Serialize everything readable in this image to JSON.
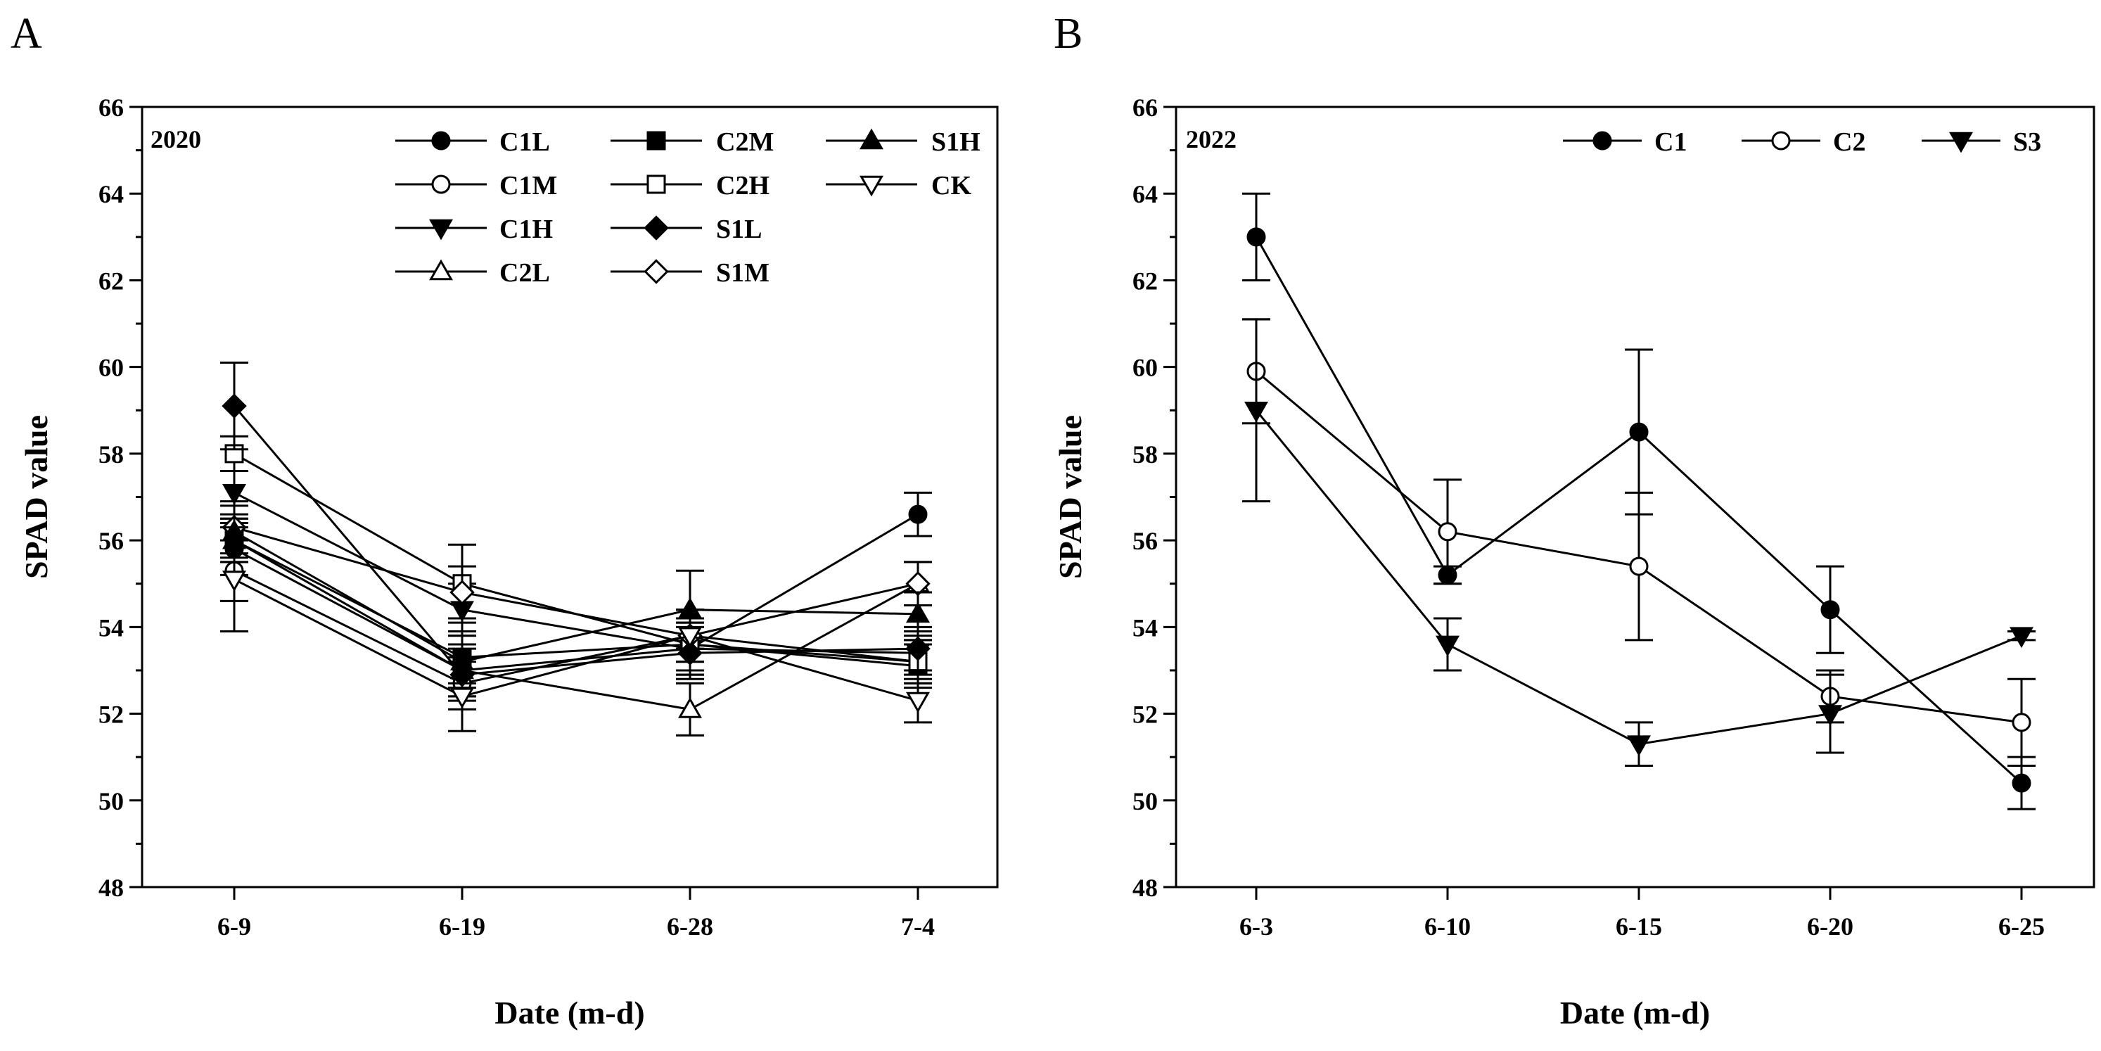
{
  "chart_data": [
    {
      "panel": "A",
      "type": "line",
      "year_label": "2020",
      "xlabel": "Date (m-d)",
      "ylabel": "SPAD value",
      "categories": [
        "6-9",
        "6-19",
        "6-28",
        "7-4"
      ],
      "ylim": [
        48,
        66
      ],
      "yticks": [
        48,
        50,
        52,
        54,
        56,
        58,
        60,
        62,
        64,
        66
      ],
      "grid": false,
      "legend_position": "top-right",
      "series": [
        {
          "name": "C1L",
          "marker": "circle",
          "fill": "filled",
          "values": [
            55.8,
            53.0,
            53.5,
            56.6
          ],
          "errors": [
            0.6,
            0.6,
            0.6,
            0.5
          ]
        },
        {
          "name": "C1M",
          "marker": "circle",
          "fill": "open",
          "values": [
            55.3,
            52.7,
            53.8,
            53.2
          ],
          "errors": [
            0.7,
            0.6,
            0.6,
            0.5
          ]
        },
        {
          "name": "C1H",
          "marker": "triangle-down",
          "fill": "filled",
          "values": [
            57.1,
            54.4,
            53.5,
            53.4
          ],
          "errors": [
            0.5,
            0.6,
            0.6,
            0.5
          ]
        },
        {
          "name": "C2L",
          "marker": "triangle-up",
          "fill": "open",
          "values": [
            56.0,
            53.0,
            52.1,
            55.0
          ],
          "errors": [
            0.5,
            0.6,
            0.6,
            0.5
          ]
        },
        {
          "name": "C2M",
          "marker": "square",
          "fill": "filled",
          "values": [
            56.0,
            53.3,
            53.6,
            53.1
          ],
          "errors": [
            0.5,
            0.6,
            0.6,
            0.5
          ]
        },
        {
          "name": "C2H",
          "marker": "square",
          "fill": "open",
          "values": [
            58.0,
            55.0,
            53.6,
            53.2
          ],
          "errors": [
            0.4,
            0.9,
            0.6,
            0.5
          ]
        },
        {
          "name": "S1L",
          "marker": "diamond",
          "fill": "filled",
          "values": [
            59.1,
            52.9,
            53.4,
            53.5
          ],
          "errors": [
            1.0,
            0.6,
            0.6,
            0.5
          ]
        },
        {
          "name": "S1M",
          "marker": "diamond",
          "fill": "open",
          "values": [
            56.3,
            54.8,
            53.8,
            55.0
          ],
          "errors": [
            0.6,
            0.6,
            0.6,
            0.5
          ]
        },
        {
          "name": "S1H",
          "marker": "triangle-up",
          "fill": "filled",
          "values": [
            56.2,
            53.2,
            54.4,
            54.3
          ],
          "errors": [
            0.6,
            0.6,
            0.9,
            0.5
          ]
        },
        {
          "name": "CK",
          "marker": "triangle-down",
          "fill": "open",
          "values": [
            55.1,
            52.4,
            53.8,
            52.3
          ],
          "errors": [
            1.2,
            0.8,
            0.6,
            0.5
          ]
        }
      ]
    },
    {
      "panel": "B",
      "type": "line",
      "year_label": "2022",
      "xlabel": "Date (m-d)",
      "ylabel": "SPAD value",
      "categories": [
        "6-3",
        "6-10",
        "6-15",
        "6-20",
        "6-25"
      ],
      "ylim": [
        48,
        66
      ],
      "yticks": [
        48,
        50,
        52,
        54,
        56,
        58,
        60,
        62,
        64,
        66
      ],
      "grid": false,
      "legend_position": "top-right",
      "series": [
        {
          "name": "C1",
          "marker": "circle",
          "fill": "filled",
          "values": [
            63.0,
            55.2,
            58.5,
            54.4,
            50.4
          ],
          "errors": [
            1.0,
            0.2,
            1.9,
            1.0,
            0.6
          ]
        },
        {
          "name": "C2",
          "marker": "circle",
          "fill": "open",
          "values": [
            59.9,
            56.2,
            55.4,
            52.4,
            51.8
          ],
          "errors": [
            1.2,
            1.2,
            1.7,
            0.6,
            1.0
          ]
        },
        {
          "name": "S3",
          "marker": "triangle-down",
          "fill": "filled",
          "values": [
            59.0,
            53.6,
            51.3,
            52.0,
            53.8
          ],
          "errors": [
            2.1,
            0.6,
            0.5,
            0.9,
            0.1
          ]
        }
      ]
    }
  ]
}
